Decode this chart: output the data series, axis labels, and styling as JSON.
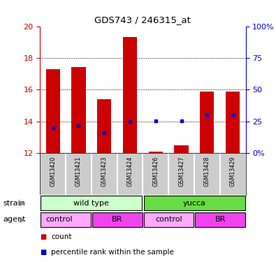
{
  "title": "GDS743 / 246315_at",
  "samples": [
    "GSM13420",
    "GSM13421",
    "GSM13423",
    "GSM13424",
    "GSM13426",
    "GSM13427",
    "GSM13428",
    "GSM13429"
  ],
  "bar_bottoms": [
    12.0,
    12.0,
    12.0,
    12.0,
    12.0,
    12.0,
    12.0,
    12.0
  ],
  "bar_tops": [
    17.3,
    17.4,
    15.4,
    19.3,
    12.07,
    12.5,
    15.9,
    15.9
  ],
  "blue_y": [
    13.6,
    13.7,
    13.3,
    14.0,
    14.05,
    14.05,
    14.4,
    14.4
  ],
  "ylim": [
    12,
    20
  ],
  "yticks": [
    12,
    14,
    16,
    18,
    20
  ],
  "right_yticks_pct": [
    0,
    25,
    50,
    75,
    100
  ],
  "right_ylabels": [
    "0%",
    "25",
    "50",
    "75",
    "100%"
  ],
  "bar_color": "#cc0000",
  "blue_color": "#0000cc",
  "bar_width": 0.55,
  "strain_color_wt": "#ccffcc",
  "strain_color_yucca": "#66dd44",
  "agent_color_control": "#ffaaff",
  "agent_color_br": "#ee44ee",
  "grid_color": "#000000",
  "bg_color": "#ffffff",
  "tick_color_left": "#cc0000",
  "tick_color_right": "#0000cc",
  "sample_bg_color": "#cccccc",
  "sample_sep_color": "#ffffff"
}
